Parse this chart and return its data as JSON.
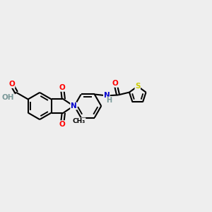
{
  "background_color": "#eeeeee",
  "atom_colors": {
    "O": "#ff0000",
    "N": "#0000cd",
    "S": "#cccc00",
    "C": "#000000",
    "H": "#7a9999"
  },
  "bond_color": "#000000",
  "bond_width": 1.5,
  "figsize": [
    3.0,
    3.0
  ],
  "dpi": 100
}
